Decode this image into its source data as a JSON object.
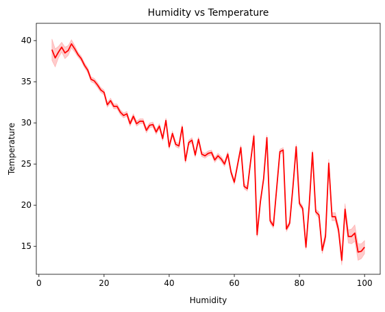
{
  "chart_data": {
    "type": "line",
    "title": "Humidity vs Temperature",
    "xlabel": "Humidity",
    "ylabel": "Temperature",
    "xlim": [
      -0.8,
      104.8
    ],
    "ylim": [
      11.6,
      42.1
    ],
    "xticks": [
      0,
      20,
      40,
      60,
      80,
      100
    ],
    "yticks": [
      15,
      20,
      25,
      30,
      35,
      40
    ],
    "grid": false,
    "series": [
      {
        "color": "#ff0000",
        "band_color": "#ff0000",
        "x": [
          4,
          5,
          6,
          7,
          8,
          9,
          10,
          11,
          12,
          13,
          14,
          15,
          16,
          17,
          18,
          19,
          20,
          21,
          22,
          23,
          24,
          25,
          26,
          27,
          28,
          29,
          30,
          31,
          32,
          33,
          34,
          35,
          36,
          37,
          38,
          39,
          40,
          41,
          42,
          43,
          44,
          45,
          46,
          47,
          48,
          49,
          50,
          51,
          52,
          53,
          54,
          55,
          56,
          57,
          58,
          59,
          60,
          61,
          62,
          63,
          64,
          65,
          66,
          67,
          68,
          69,
          70,
          71,
          72,
          73,
          74,
          75,
          76,
          77,
          78,
          79,
          80,
          81,
          82,
          83,
          84,
          85,
          86,
          87,
          88,
          89,
          90,
          91,
          92,
          93,
          94,
          95,
          96,
          97,
          98,
          99,
          100
        ],
        "y": [
          38.9,
          37.9,
          38.6,
          39.2,
          38.5,
          38.8,
          39.6,
          39.0,
          38.3,
          37.8,
          37.0,
          36.4,
          35.3,
          35.1,
          34.6,
          34.0,
          33.7,
          32.2,
          32.7,
          32.0,
          32.0,
          31.3,
          30.9,
          31.1,
          29.9,
          30.8,
          29.9,
          30.2,
          30.2,
          29.1,
          29.7,
          29.8,
          28.9,
          29.6,
          28.1,
          30.3,
          27.1,
          28.7,
          27.4,
          27.2,
          29.5,
          25.4,
          27.6,
          27.9,
          26.1,
          28.0,
          26.2,
          26.0,
          26.3,
          26.4,
          25.5,
          26.0,
          25.6,
          25.0,
          26.2,
          24.0,
          22.8,
          24.9,
          27.0,
          22.3,
          22.0,
          25.3,
          28.4,
          16.4,
          20.4,
          23.2,
          28.2,
          18.1,
          17.5,
          22.0,
          26.5,
          26.7,
          17.1,
          17.8,
          22.2,
          27.1,
          20.2,
          19.6,
          14.9,
          20.0,
          26.4,
          19.2,
          18.8,
          14.5,
          16.2,
          25.1,
          18.6,
          18.6,
          17.0,
          13.3,
          19.5,
          16.2,
          16.2,
          16.6,
          14.3,
          14.4,
          14.9
        ],
        "ci": [
          1.3,
          1.1,
          0.7,
          0.6,
          0.7,
          0.6,
          0.5,
          0.4,
          0.3,
          0.3,
          0.3,
          0.3,
          0.3,
          0.3,
          0.3,
          0.3,
          0.3,
          0.3,
          0.3,
          0.3,
          0.3,
          0.3,
          0.3,
          0.3,
          0.3,
          0.3,
          0.3,
          0.3,
          0.3,
          0.3,
          0.3,
          0.3,
          0.3,
          0.3,
          0.3,
          0.3,
          0.3,
          0.3,
          0.3,
          0.3,
          0.3,
          0.3,
          0.3,
          0.3,
          0.3,
          0.3,
          0.3,
          0.3,
          0.3,
          0.3,
          0.3,
          0.3,
          0.3,
          0.3,
          0.3,
          0.3,
          0.3,
          0.3,
          0.3,
          0.3,
          0.3,
          0.3,
          0.3,
          0.3,
          0.3,
          0.3,
          0.3,
          0.3,
          0.3,
          0.3,
          0.3,
          0.3,
          0.3,
          0.3,
          0.3,
          0.3,
          0.3,
          0.3,
          0.3,
          0.3,
          0.3,
          0.3,
          0.4,
          0.4,
          0.5,
          0.5,
          0.5,
          0.5,
          0.5,
          0.6,
          0.7,
          0.8,
          0.9,
          1.0,
          1.0,
          0.9,
          0.8
        ]
      }
    ]
  }
}
